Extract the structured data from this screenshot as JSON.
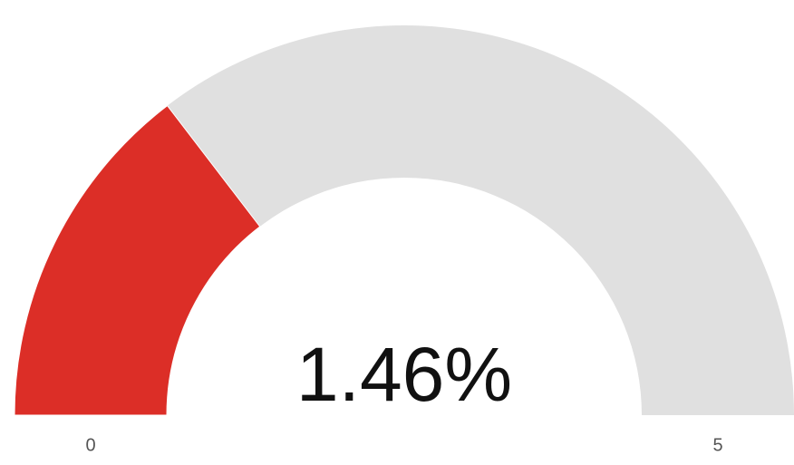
{
  "chart_data": {
    "type": "gauge",
    "values": [
      1.46
    ],
    "value_labels": [
      "1.46%"
    ],
    "color": "#dc2e27",
    "track_color": "#e0e0e0",
    "ylim": [
      0,
      5
    ],
    "yticks": [
      0,
      5
    ]
  }
}
